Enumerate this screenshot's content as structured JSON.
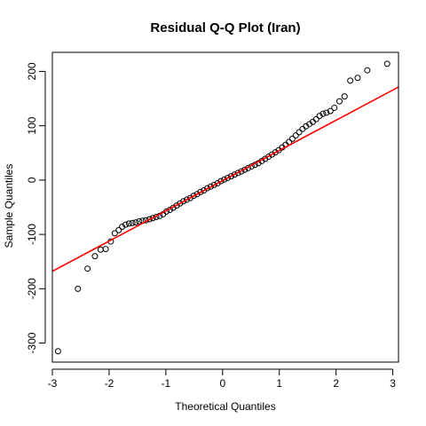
{
  "chart_data": {
    "type": "scatter",
    "title": "Residual Q-Q Plot (Iran)",
    "xlabel": "Theoretical Quantiles",
    "ylabel": "Sample Quantiles",
    "xlim": [
      -3.0,
      3.1
    ],
    "ylim": [
      -335,
      235
    ],
    "x_ticks": [
      -3,
      -2,
      -1,
      0,
      1,
      2,
      3
    ],
    "y_ticks": [
      -300,
      -200,
      -100,
      0,
      100,
      200
    ],
    "grid": false,
    "legend": "none",
    "colors": {
      "points": "#000000",
      "reference_line": "#ff0000"
    },
    "reference_line": {
      "slope": 55.6,
      "intercept": -1.1
    },
    "points": [
      {
        "x": -2.9,
        "y": -315
      },
      {
        "x": -2.55,
        "y": -200
      },
      {
        "x": -2.38,
        "y": -163
      },
      {
        "x": -2.25,
        "y": -140
      },
      {
        "x": -2.15,
        "y": -128
      },
      {
        "x": -2.06,
        "y": -127
      },
      {
        "x": -1.97,
        "y": -113
      },
      {
        "x": -1.9,
        "y": -98
      },
      {
        "x": -1.83,
        "y": -92
      },
      {
        "x": -1.77,
        "y": -86
      },
      {
        "x": -1.71,
        "y": -82
      },
      {
        "x": -1.65,
        "y": -80
      },
      {
        "x": -1.59,
        "y": -79
      },
      {
        "x": -1.53,
        "y": -78
      },
      {
        "x": -1.47,
        "y": -76
      },
      {
        "x": -1.41,
        "y": -75
      },
      {
        "x": -1.35,
        "y": -74
      },
      {
        "x": -1.29,
        "y": -72
      },
      {
        "x": -1.23,
        "y": -70
      },
      {
        "x": -1.17,
        "y": -68
      },
      {
        "x": -1.11,
        "y": -66
      },
      {
        "x": -1.05,
        "y": -63
      },
      {
        "x": -0.99,
        "y": -58
      },
      {
        "x": -0.93,
        "y": -55
      },
      {
        "x": -0.87,
        "y": -51
      },
      {
        "x": -0.81,
        "y": -47
      },
      {
        "x": -0.75,
        "y": -43
      },
      {
        "x": -0.69,
        "y": -39
      },
      {
        "x": -0.63,
        "y": -36
      },
      {
        "x": -0.57,
        "y": -33
      },
      {
        "x": -0.51,
        "y": -29
      },
      {
        "x": -0.45,
        "y": -26
      },
      {
        "x": -0.39,
        "y": -22
      },
      {
        "x": -0.33,
        "y": -19
      },
      {
        "x": -0.27,
        "y": -15
      },
      {
        "x": -0.21,
        "y": -12
      },
      {
        "x": -0.15,
        "y": -9
      },
      {
        "x": -0.09,
        "y": -6
      },
      {
        "x": -0.03,
        "y": -2
      },
      {
        "x": 0.03,
        "y": 1
      },
      {
        "x": 0.09,
        "y": 4
      },
      {
        "x": 0.15,
        "y": 7
      },
      {
        "x": 0.21,
        "y": 10
      },
      {
        "x": 0.27,
        "y": 13
      },
      {
        "x": 0.33,
        "y": 16
      },
      {
        "x": 0.39,
        "y": 19
      },
      {
        "x": 0.45,
        "y": 22
      },
      {
        "x": 0.51,
        "y": 25
      },
      {
        "x": 0.57,
        "y": 28
      },
      {
        "x": 0.63,
        "y": 31
      },
      {
        "x": 0.69,
        "y": 35
      },
      {
        "x": 0.75,
        "y": 39
      },
      {
        "x": 0.81,
        "y": 43
      },
      {
        "x": 0.87,
        "y": 47
      },
      {
        "x": 0.93,
        "y": 51
      },
      {
        "x": 0.99,
        "y": 55
      },
      {
        "x": 1.05,
        "y": 60
      },
      {
        "x": 1.11,
        "y": 65
      },
      {
        "x": 1.17,
        "y": 70
      },
      {
        "x": 1.23,
        "y": 76
      },
      {
        "x": 1.29,
        "y": 82
      },
      {
        "x": 1.35,
        "y": 88
      },
      {
        "x": 1.41,
        "y": 94
      },
      {
        "x": 1.47,
        "y": 99
      },
      {
        "x": 1.53,
        "y": 103
      },
      {
        "x": 1.59,
        "y": 107
      },
      {
        "x": 1.65,
        "y": 112
      },
      {
        "x": 1.71,
        "y": 118
      },
      {
        "x": 1.77,
        "y": 122
      },
      {
        "x": 1.83,
        "y": 124
      },
      {
        "x": 1.9,
        "y": 127
      },
      {
        "x": 1.97,
        "y": 133
      },
      {
        "x": 2.06,
        "y": 145
      },
      {
        "x": 2.15,
        "y": 154
      },
      {
        "x": 2.25,
        "y": 183
      },
      {
        "x": 2.38,
        "y": 188
      },
      {
        "x": 2.55,
        "y": 202
      },
      {
        "x": 2.9,
        "y": 214
      }
    ]
  }
}
